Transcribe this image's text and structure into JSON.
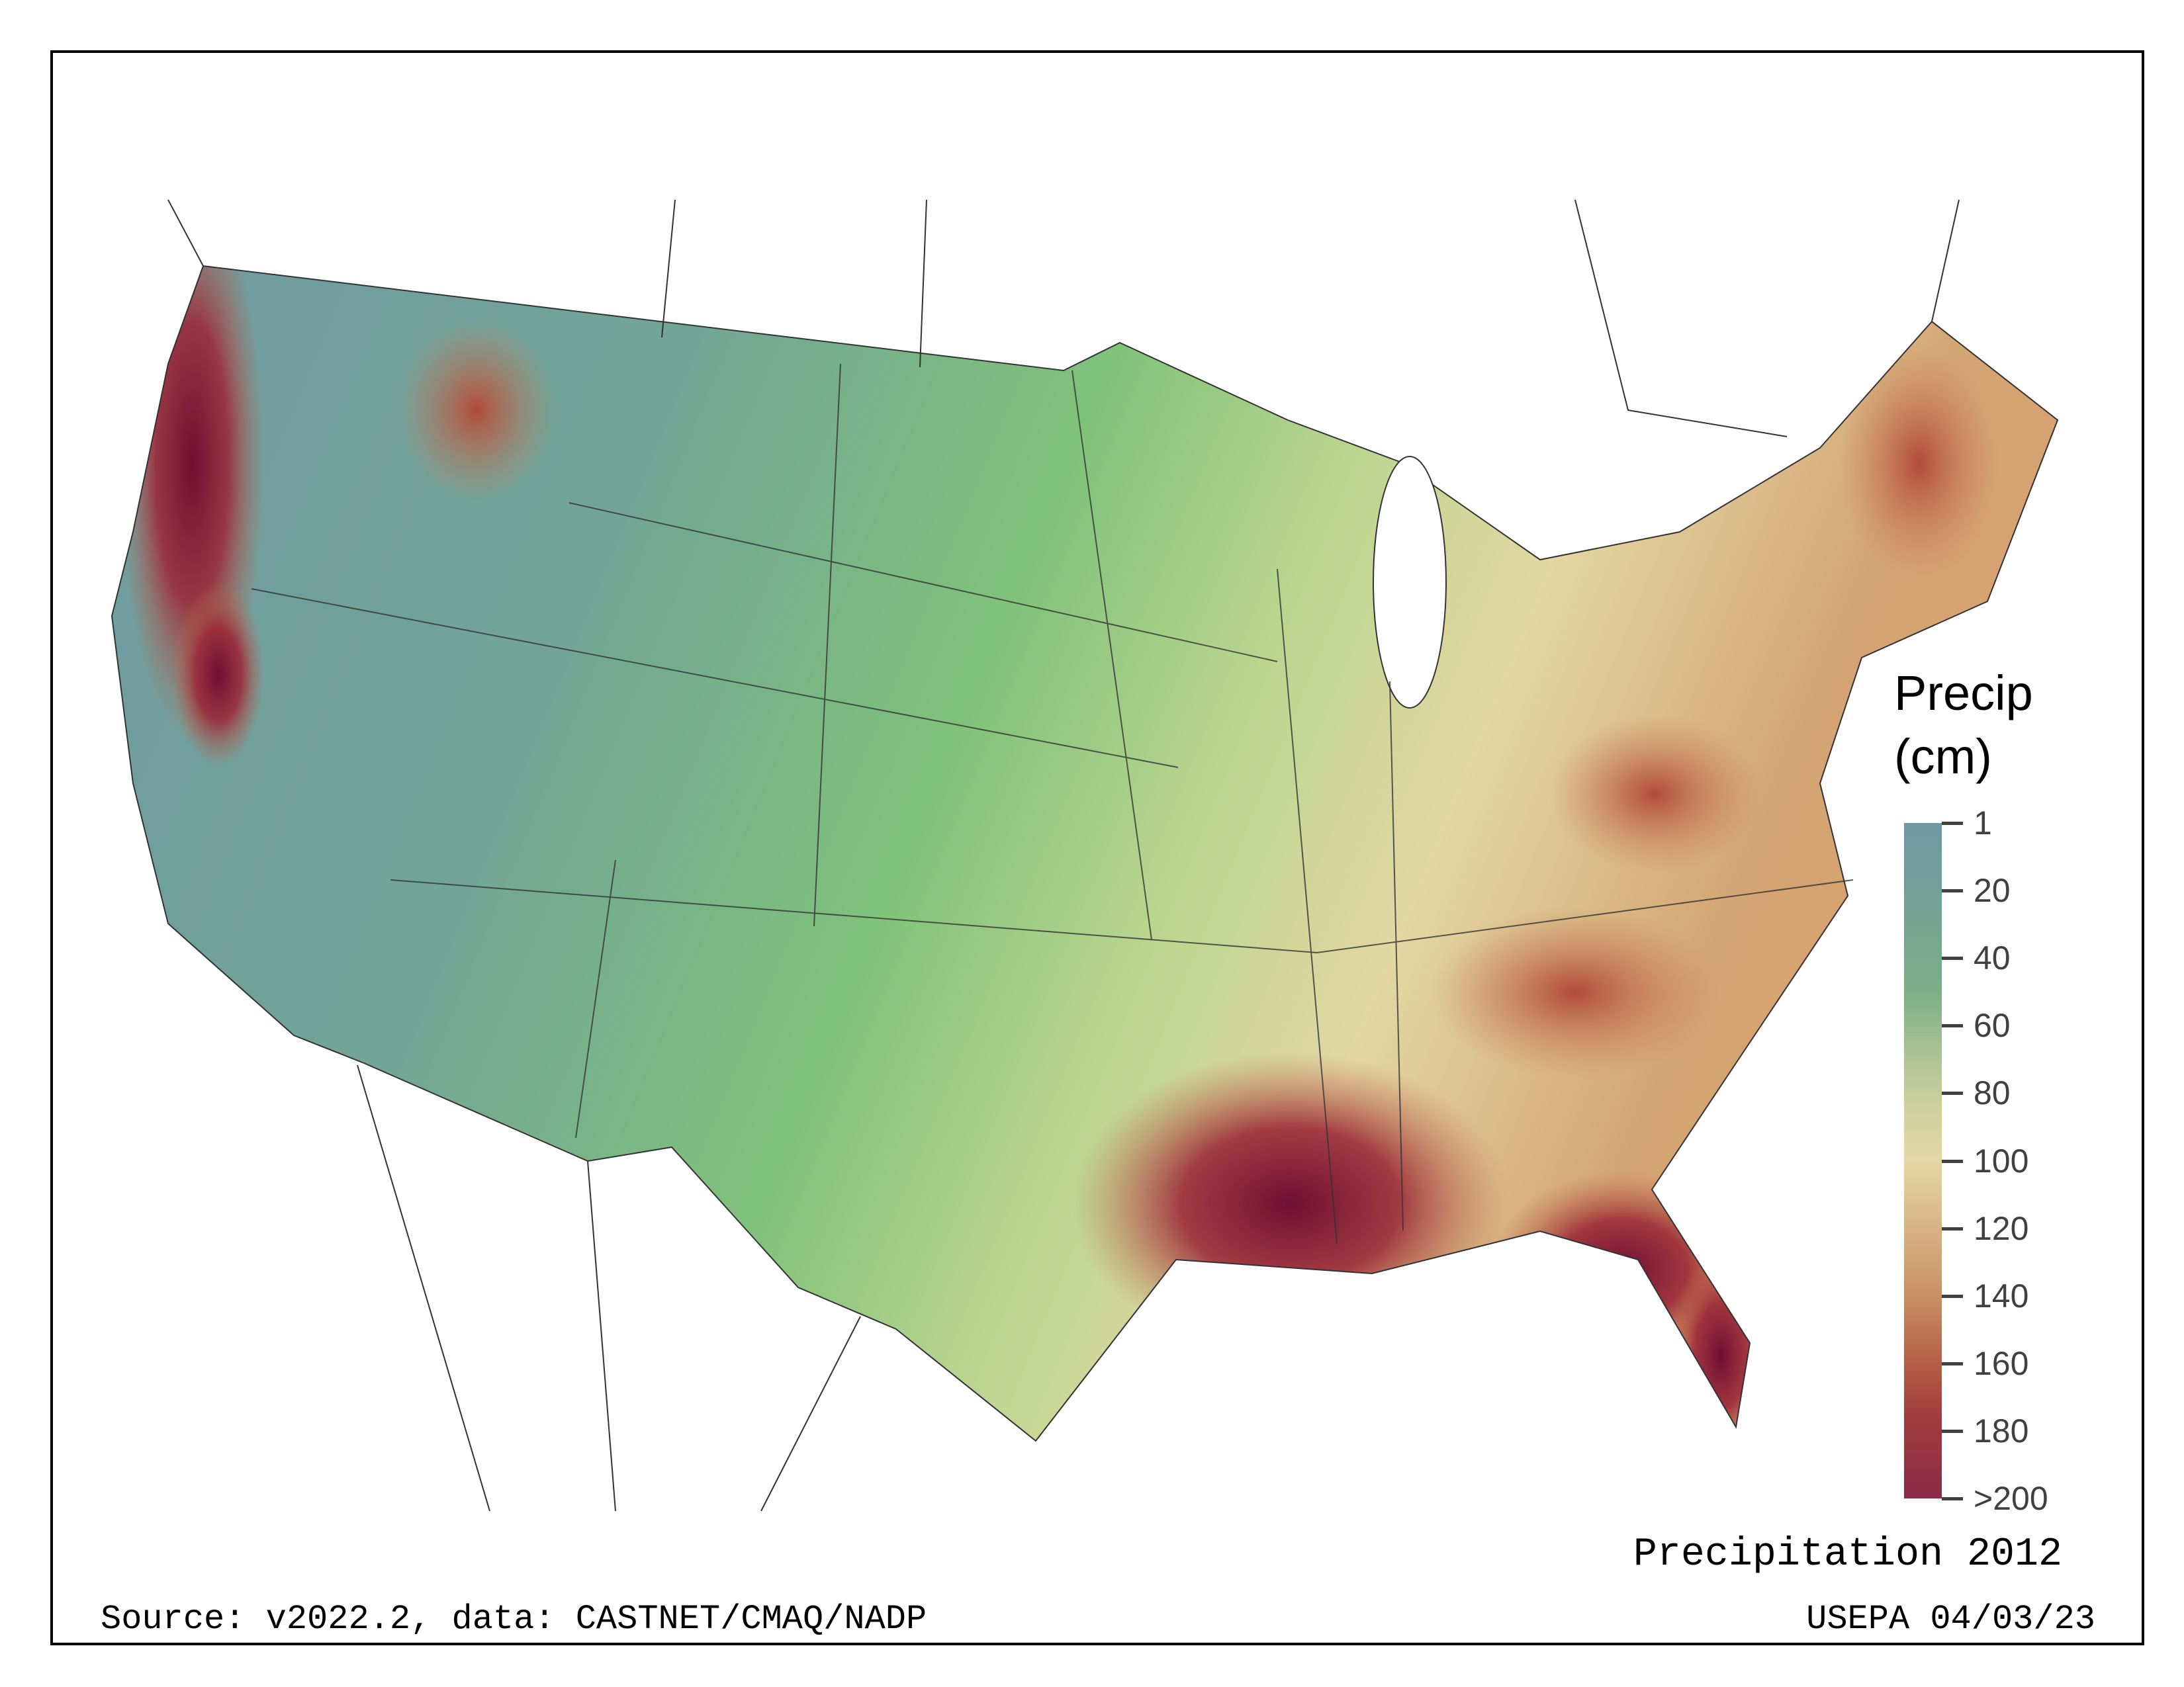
{
  "map": {
    "title": "Precipitation 2012",
    "source": "Source: v2022.2, data: CASTNET/CMAQ/NADP",
    "credit": "USEPA 04/03/23"
  },
  "legend": {
    "title_line1": "Precip",
    "title_line2": "(cm)",
    "ticks": [
      "1",
      "20",
      "40",
      "60",
      "80",
      "100",
      "120",
      "140",
      "160",
      "180",
      ">200"
    ],
    "colors": {
      "low": "#6e9aa5",
      "mid": "#e3d8a5",
      "high": "#8a2b47"
    }
  }
}
